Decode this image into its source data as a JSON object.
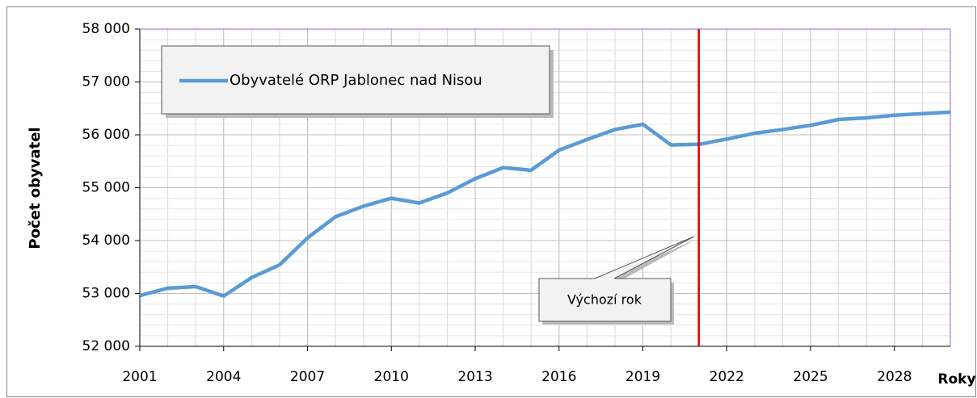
{
  "chart_data": {
    "type": "line",
    "x": [
      2001,
      2002,
      2003,
      2004,
      2005,
      2006,
      2007,
      2008,
      2009,
      2010,
      2011,
      2012,
      2013,
      2014,
      2015,
      2016,
      2017,
      2018,
      2019,
      2020,
      2021,
      2022,
      2023,
      2024,
      2025,
      2026,
      2027,
      2028,
      2029,
      2030
    ],
    "series": [
      {
        "name": "Obyvatelé ORP Jablonec nad Nisou",
        "color": "#5b9bd5",
        "values": [
          52960,
          53100,
          53130,
          52950,
          53300,
          53540,
          54050,
          54450,
          54650,
          54800,
          54710,
          54900,
          55170,
          55380,
          55330,
          55710,
          55910,
          56100,
          56200,
          55810,
          55820,
          55920,
          56030,
          56100,
          56180,
          56290,
          56320,
          56370,
          56400,
          56430
        ]
      }
    ],
    "xlim": [
      2001,
      2030
    ],
    "xticks": [
      2001,
      2004,
      2007,
      2010,
      2013,
      2016,
      2019,
      2022,
      2025,
      2028
    ],
    "ylim": [
      52000,
      58000
    ],
    "yticks": [
      {
        "value": 52000,
        "label": "52 000"
      },
      {
        "value": 53000,
        "label": "53 000"
      },
      {
        "value": 54000,
        "label": "54 000"
      },
      {
        "value": 55000,
        "label": "55 000"
      },
      {
        "value": 56000,
        "label": "56 000"
      },
      {
        "value": 57000,
        "label": "57 000"
      },
      {
        "value": 58000,
        "label": "58 000"
      }
    ],
    "y_label": "Počet obyvatel",
    "x_label": "Roky",
    "grid": true,
    "minor_grid": true,
    "legend": "upper left",
    "reference_line": {
      "x": 2021,
      "color": "#e00000"
    },
    "annotation": "Výchozí rok"
  }
}
